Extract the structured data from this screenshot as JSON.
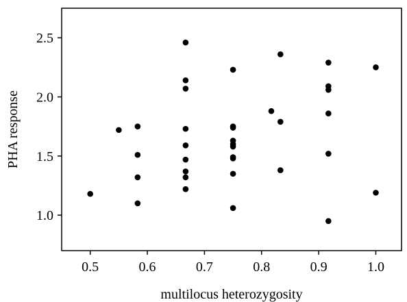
{
  "chart_data": {
    "type": "scatter",
    "title": "",
    "xlabel": "multilocus heterozygosity",
    "ylabel": "PHA response",
    "xlim": [
      0.45,
      1.045
    ],
    "ylim": [
      0.7,
      2.75
    ],
    "xticks": [
      0.5,
      0.6,
      0.7,
      0.8,
      0.9,
      1.0
    ],
    "xtick_labels": [
      "0.5",
      "0.6",
      "0.7",
      "0.8",
      "0.9",
      "1.0"
    ],
    "yticks": [
      1.0,
      1.5,
      2.0,
      2.5
    ],
    "ytick_labels": [
      "1.0",
      "1.5",
      "2.0",
      "2.5"
    ],
    "grid": false,
    "marker_color": "#000000",
    "points": [
      {
        "x": 0.5,
        "y": 1.18
      },
      {
        "x": 0.55,
        "y": 1.72
      },
      {
        "x": 0.583,
        "y": 1.75
      },
      {
        "x": 0.583,
        "y": 1.51
      },
      {
        "x": 0.583,
        "y": 1.32
      },
      {
        "x": 0.583,
        "y": 1.1
      },
      {
        "x": 0.667,
        "y": 2.46
      },
      {
        "x": 0.667,
        "y": 2.14
      },
      {
        "x": 0.667,
        "y": 2.07
      },
      {
        "x": 0.667,
        "y": 1.73
      },
      {
        "x": 0.667,
        "y": 1.59
      },
      {
        "x": 0.667,
        "y": 1.47
      },
      {
        "x": 0.667,
        "y": 1.37
      },
      {
        "x": 0.667,
        "y": 1.32
      },
      {
        "x": 0.667,
        "y": 1.22
      },
      {
        "x": 0.75,
        "y": 2.23
      },
      {
        "x": 0.75,
        "y": 1.75
      },
      {
        "x": 0.75,
        "y": 1.74
      },
      {
        "x": 0.75,
        "y": 1.63
      },
      {
        "x": 0.75,
        "y": 1.6
      },
      {
        "x": 0.75,
        "y": 1.58
      },
      {
        "x": 0.75,
        "y": 1.49
      },
      {
        "x": 0.75,
        "y": 1.48
      },
      {
        "x": 0.75,
        "y": 1.35
      },
      {
        "x": 0.75,
        "y": 1.06
      },
      {
        "x": 0.817,
        "y": 1.88
      },
      {
        "x": 0.833,
        "y": 2.36
      },
      {
        "x": 0.833,
        "y": 1.79
      },
      {
        "x": 0.833,
        "y": 1.38
      },
      {
        "x": 0.917,
        "y": 2.29
      },
      {
        "x": 0.917,
        "y": 2.09
      },
      {
        "x": 0.917,
        "y": 2.06
      },
      {
        "x": 0.917,
        "y": 1.86
      },
      {
        "x": 0.917,
        "y": 1.52
      },
      {
        "x": 0.917,
        "y": 0.95
      },
      {
        "x": 1.0,
        "y": 2.25
      },
      {
        "x": 1.0,
        "y": 1.19
      }
    ]
  }
}
